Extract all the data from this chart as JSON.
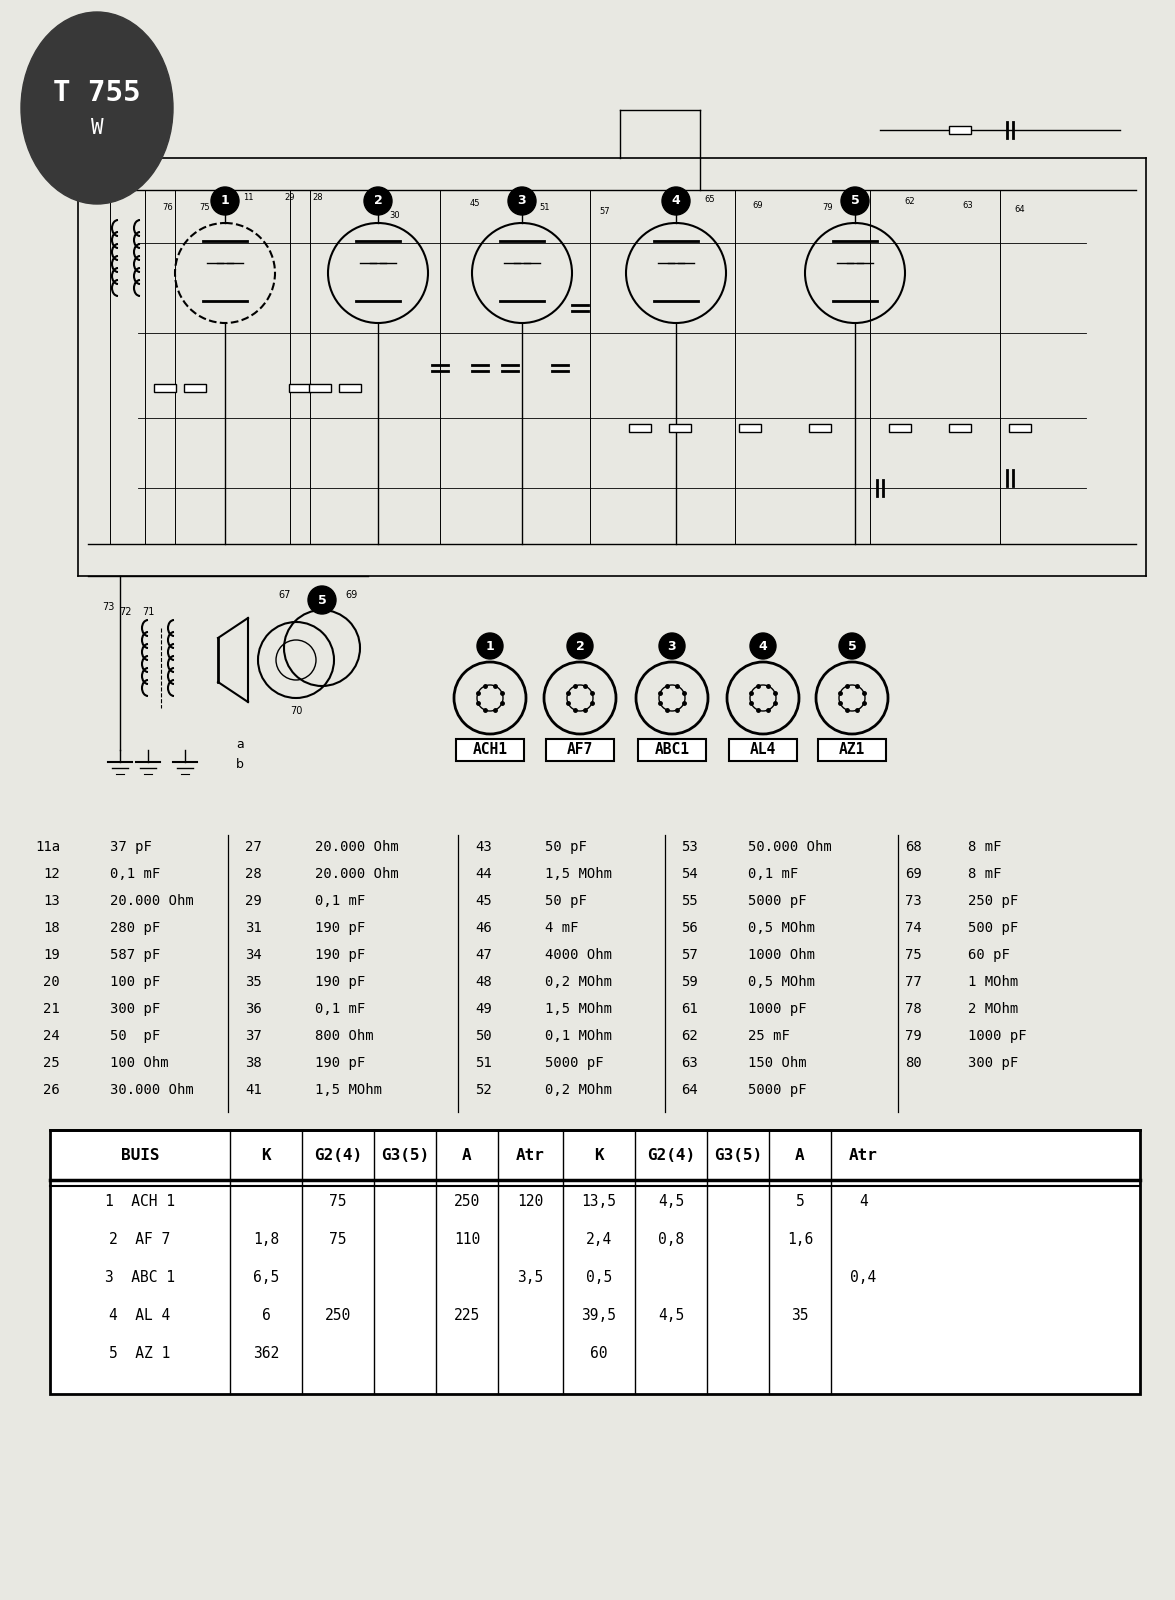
{
  "bg_color": "#e8e8e2",
  "dark_oval_color": "#383838",
  "model_text": "T 755",
  "model_sub": "W",
  "component_list1": [
    [
      "11a",
      "37 pF"
    ],
    [
      "12",
      "0,1 mF"
    ],
    [
      "13",
      "20.000 Ohm"
    ],
    [
      "18",
      "280 pF"
    ],
    [
      "19",
      "587 pF"
    ],
    [
      "20",
      "100 pF"
    ],
    [
      "21",
      "300 pF"
    ],
    [
      "24",
      "50  pF"
    ],
    [
      "25",
      "100 Ohm"
    ],
    [
      "26",
      "30.000 Ohm"
    ]
  ],
  "component_list2": [
    [
      "27",
      "20.000 Ohm"
    ],
    [
      "28",
      "20.000 Ohm"
    ],
    [
      "29",
      "0,1 mF"
    ],
    [
      "31",
      "190 pF"
    ],
    [
      "34",
      "190 pF"
    ],
    [
      "35",
      "190 pF"
    ],
    [
      "36",
      "0,1 mF"
    ],
    [
      "37",
      "800 Ohm"
    ],
    [
      "38",
      "190 pF"
    ],
    [
      "41",
      "1,5 MOhm"
    ]
  ],
  "component_list3": [
    [
      "43",
      "50 pF"
    ],
    [
      "44",
      "1,5 MOhm"
    ],
    [
      "45",
      "50 pF"
    ],
    [
      "46",
      "4 mF"
    ],
    [
      "47",
      "4000 Ohm"
    ],
    [
      "48",
      "0,2 MOhm"
    ],
    [
      "49",
      "1,5 MOhm"
    ],
    [
      "50",
      "0,1 MOhm"
    ],
    [
      "51",
      "5000 pF"
    ],
    [
      "52",
      "0,2 MOhm"
    ]
  ],
  "component_list4": [
    [
      "53",
      "50.000 Ohm"
    ],
    [
      "54",
      "0,1 mF"
    ],
    [
      "55",
      "5000 pF"
    ],
    [
      "56",
      "0,5 MOhm"
    ],
    [
      "57",
      "1000 Ohm"
    ],
    [
      "59",
      "0,5 MOhm"
    ],
    [
      "61",
      "1000 pF"
    ],
    [
      "62",
      "25 mF"
    ],
    [
      "63",
      "150 Ohm"
    ],
    [
      "64",
      "5000 pF"
    ]
  ],
  "component_list5": [
    [
      "68",
      "8 mF"
    ],
    [
      "69",
      "8 mF"
    ],
    [
      "73",
      "250 pF"
    ],
    [
      "74",
      "500 pF"
    ],
    [
      "75",
      "60 pF"
    ],
    [
      "77",
      "1 MOhm"
    ],
    [
      "78",
      "2 MOhm"
    ],
    [
      "79",
      "1000 pF"
    ],
    [
      "80",
      "300 pF"
    ]
  ],
  "tube_labels": [
    "ACH1",
    "AF7",
    "ABC1",
    "AL4",
    "AZ1"
  ],
  "table_header": [
    "BUIS",
    "K",
    "G2(4)",
    "G3(5)",
    "A",
    "Atr",
    "K",
    "G2(4)",
    "G3(5)",
    "A",
    "Atr"
  ],
  "table_col_widths": [
    180,
    72,
    72,
    62,
    62,
    65,
    72,
    72,
    62,
    62,
    65
  ],
  "table_rows": [
    [
      "1  ACH 1",
      "",
      "75",
      "",
      "250",
      "120",
      "13,5",
      "4,5",
      "",
      "5",
      "4"
    ],
    [
      "2  AF 7",
      "1,8",
      "75",
      "",
      "110",
      "",
      "2,4",
      "0,8",
      "",
      "1,6",
      ""
    ],
    [
      "3  ABC 1",
      "6,5",
      "",
      "",
      "",
      "3,5",
      "0,5",
      "",
      "",
      "",
      "0,4"
    ],
    [
      "4  AL 4",
      "6",
      "250",
      "",
      "225",
      "",
      "39,5",
      "4,5",
      "",
      "35",
      ""
    ],
    [
      "5  AZ 1",
      "362",
      "",
      "",
      "",
      "",
      "60",
      "",
      "",
      "",
      ""
    ]
  ]
}
